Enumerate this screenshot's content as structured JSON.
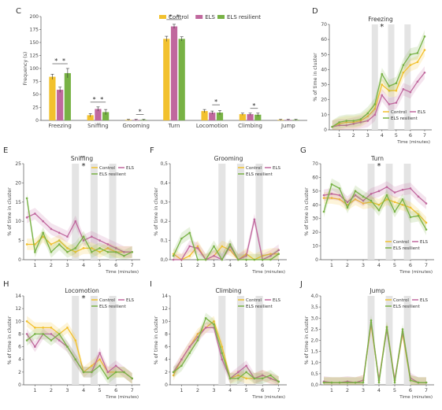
{
  "colors": {
    "control": "#f2c12e",
    "els": "#c0689e",
    "resilient": "#78b245",
    "shade": "#e4e4e4"
  },
  "legend_labels": [
    "Control",
    "ELS",
    "ELS resilient"
  ],
  "chart_data": [
    {
      "id": "C",
      "type": "bar",
      "panel_label": "C",
      "ylabel": "Frequency (s)",
      "ylim": [
        0,
        200
      ],
      "yticks": [
        "0",
        "25",
        "50",
        "75",
        "100",
        "125",
        "150",
        "175",
        "200"
      ],
      "categories": [
        "Freezing",
        "Sniffing",
        "Grooming",
        "Turn",
        "Locomotion",
        "Climbing",
        "Jump"
      ],
      "series": [
        {
          "name": "Control",
          "values": [
            84,
            10,
            1,
            157,
            18,
            12,
            1
          ],
          "errors": [
            5,
            3,
            1,
            5,
            3,
            2,
            1
          ]
        },
        {
          "name": "ELS",
          "values": [
            59,
            22,
            1,
            181,
            15,
            12,
            1
          ],
          "errors": [
            5,
            4,
            1,
            4,
            3,
            2,
            1
          ]
        },
        {
          "name": "ELS resilient",
          "values": [
            91,
            16,
            1,
            157,
            15,
            11,
            1
          ],
          "errors": [
            9,
            5,
            1,
            4,
            4,
            3,
            1
          ]
        }
      ],
      "significance": [
        "*",
        "*",
        "*",
        "*",
        "*",
        "*",
        "*",
        "*",
        "*"
      ]
    },
    {
      "id": "D",
      "type": "line",
      "panel_label": "D",
      "title": "Freezing",
      "star": "*",
      "ylabel": "% of time in cluster",
      "xlabel": "Time (minutes)",
      "ylim": [
        0,
        70
      ],
      "yticks": [
        "0",
        "10",
        "20",
        "30",
        "40",
        "50",
        "60",
        "70"
      ],
      "xticks": [
        "1",
        "2",
        "3",
        "4",
        "5",
        "6",
        "7"
      ],
      "legend": [
        "Control",
        "ELS",
        "ELS resilient"
      ],
      "x": [
        0.5,
        1,
        1.5,
        2,
        2.5,
        3,
        3.5,
        4,
        4.5,
        5,
        5.5,
        6,
        6.5,
        7
      ],
      "series": [
        {
          "name": "Control",
          "values": [
            2,
            4,
            5,
            5,
            6,
            9,
            14,
            30,
            26,
            26,
            38,
            43,
            45,
            53
          ]
        },
        {
          "name": "ELS",
          "values": [
            2,
            3,
            3,
            4,
            5,
            6,
            10,
            23,
            17,
            18,
            27,
            25,
            32,
            38
          ]
        },
        {
          "name": "ELS resilient",
          "values": [
            2,
            5,
            6,
            6,
            7,
            11,
            17,
            37,
            29,
            31,
            43,
            50,
            51,
            62
          ]
        }
      ]
    },
    {
      "id": "E",
      "type": "line",
      "panel_label": "E",
      "title": "Sniffing",
      "star": "*",
      "ylabel": "% of time in cluster",
      "xlabel": "Time (minutes)",
      "ylim": [
        0,
        25
      ],
      "yticks": [
        "0",
        "5",
        "10",
        "15",
        "20",
        "25"
      ],
      "xticks": [
        "1",
        "2",
        "3",
        "4",
        "5",
        "6",
        "7"
      ],
      "legend": [
        "Control",
        "ELS",
        "ELS resilient"
      ],
      "x": [
        0.5,
        1,
        1.5,
        2,
        2.5,
        3,
        3.5,
        4,
        4.5,
        5,
        5.5,
        6,
        6.5,
        7
      ],
      "series": [
        {
          "name": "Control",
          "values": [
            4,
            4,
            6,
            4,
            5,
            3,
            2,
            3,
            3,
            2,
            3,
            2,
            2,
            2
          ]
        },
        {
          "name": "ELS",
          "values": [
            11,
            12,
            10,
            8,
            7,
            6,
            10,
            5,
            6,
            5,
            4,
            3,
            2,
            2
          ]
        },
        {
          "name": "ELS resilient",
          "values": [
            16,
            2,
            7,
            2,
            4,
            2,
            3,
            6,
            2,
            3,
            2,
            2,
            1,
            2
          ]
        }
      ]
    },
    {
      "id": "F",
      "type": "line",
      "panel_label": "F",
      "title": "Grooming",
      "ylabel": "% of time in cluster",
      "xlabel": "Time (minutes)",
      "ylim": [
        0,
        0.5
      ],
      "yticks": [
        "0,0",
        "0,1",
        "0,2",
        "0,3",
        "0,4",
        "0,5"
      ],
      "xticks": [
        "1",
        "2",
        "3",
        "4",
        "5",
        "6",
        "7"
      ],
      "legend": [
        "Control",
        "ELS",
        "ELS resilient"
      ],
      "x": [
        0.5,
        1,
        1.5,
        2,
        2.5,
        3,
        3.5,
        4,
        4.5,
        5,
        5.5,
        6,
        6.5,
        7
      ],
      "series": [
        {
          "name": "Control",
          "values": [
            0.03,
            0.0,
            0.02,
            0.07,
            0.0,
            0.02,
            0.07,
            0.05,
            0.0,
            0.03,
            0.0,
            0.02,
            0.03,
            0.03
          ]
        },
        {
          "name": "ELS",
          "values": [
            0.0,
            0.0,
            0.07,
            0.06,
            0.0,
            0.02,
            0.0,
            0.07,
            0.0,
            0.02,
            0.21,
            0.0,
            0.02,
            0.05
          ]
        },
        {
          "name": "ELS resilient",
          "values": [
            0.02,
            0.11,
            0.14,
            0.0,
            0.0,
            0.07,
            0.0,
            0.08,
            0.0,
            0.0,
            0.0,
            0.0,
            0.0,
            0.03
          ]
        }
      ]
    },
    {
      "id": "G",
      "type": "line",
      "panel_label": "G",
      "title": "Turn",
      "star": "*",
      "ylabel": "% of time in cluster",
      "xlabel": "Time (minutes)",
      "ylim": [
        0,
        70
      ],
      "yticks": [
        "0",
        "10",
        "20",
        "30",
        "40",
        "50",
        "60",
        "70"
      ],
      "xticks": [
        "1",
        "2",
        "3",
        "4",
        "5",
        "6",
        "7"
      ],
      "legend": [
        "Control",
        "ELS",
        "ELS resilient"
      ],
      "x": [
        0.5,
        1,
        1.5,
        2,
        2.5,
        3,
        3.5,
        4,
        4.5,
        5,
        5.5,
        6,
        6.5,
        7
      ],
      "series": [
        {
          "name": "Control",
          "values": [
            45,
            45,
            44,
            40,
            44,
            41,
            42,
            40,
            44,
            42,
            40,
            38,
            33,
            27
          ]
        },
        {
          "name": "ELS",
          "values": [
            47,
            48,
            47,
            42,
            47,
            43,
            48,
            50,
            53,
            49,
            51,
            52,
            46,
            41
          ]
        },
        {
          "name": "ELS resilient",
          "values": [
            35,
            55,
            52,
            38,
            50,
            46,
            43,
            36,
            47,
            35,
            44,
            31,
            32,
            22
          ]
        }
      ]
    },
    {
      "id": "H",
      "type": "line",
      "panel_label": "H",
      "title": "Locomotion",
      "star": "*",
      "ylabel": "% of time in cluster",
      "xlabel": "Time (minutes)",
      "ylim": [
        0,
        14
      ],
      "yticks": [
        "0",
        "2",
        "4",
        "6",
        "8",
        "10",
        "12",
        "14"
      ],
      "xticks": [
        "1",
        "2",
        "3",
        "4",
        "5",
        "6",
        "7"
      ],
      "legend": [
        "Control",
        "ELS",
        "ELS resilient"
      ],
      "x": [
        0.5,
        1,
        1.5,
        2,
        2.5,
        3,
        3.5,
        4,
        4.5,
        5,
        5.5,
        6,
        6.5,
        7
      ],
      "series": [
        {
          "name": "Control",
          "values": [
            10,
            9,
            9,
            9,
            8,
            9,
            7,
            2,
            3,
            4,
            2,
            2,
            2,
            1
          ]
        },
        {
          "name": "ELS",
          "values": [
            8,
            6,
            8,
            8,
            7,
            6,
            4,
            2,
            2,
            5,
            2,
            3,
            2,
            1
          ]
        },
        {
          "name": "ELS resilient",
          "values": [
            7,
            8,
            8,
            7,
            8,
            6,
            4,
            2,
            2,
            3,
            1,
            2,
            2,
            1
          ]
        }
      ]
    },
    {
      "id": "I",
      "type": "line",
      "panel_label": "I",
      "title": "Climbing",
      "ylabel": "% of time in cluster",
      "xlabel": "Time (minutes)",
      "ylim": [
        0,
        14
      ],
      "yticks": [
        "0",
        "2",
        "4",
        "6",
        "8",
        "10",
        "12",
        "14"
      ],
      "xticks": [
        "1",
        "2",
        "3",
        "4",
        "5",
        "6",
        "7"
      ],
      "legend": [
        "Control",
        "ELS",
        "ELS resilient"
      ],
      "x": [
        0.5,
        1,
        1.5,
        2,
        2.5,
        3,
        3.5,
        4,
        4.5,
        5,
        5.5,
        6,
        6.5,
        7
      ],
      "series": [
        {
          "name": "Control",
          "values": [
            1.5,
            4,
            6,
            8,
            9,
            10,
            6,
            1,
            1.5,
            1,
            1,
            1.5,
            1,
            0.5
          ]
        },
        {
          "name": "ELS",
          "values": [
            2,
            4,
            6,
            7.5,
            9,
            9,
            4,
            1,
            2,
            3,
            1,
            1.5,
            1,
            0.5
          ]
        },
        {
          "name": "ELS resilient",
          "values": [
            2,
            3,
            5,
            7,
            10.5,
            9.5,
            5,
            1,
            1,
            2,
            1,
            1,
            1.5,
            0.5
          ]
        }
      ]
    },
    {
      "id": "J",
      "type": "line",
      "panel_label": "J",
      "title": "Jump",
      "ylabel": "% of time in cluster",
      "xlabel": "Time (minutes)",
      "ylim": [
        0,
        4
      ],
      "yticks": [
        "0,0",
        "0,5",
        "1,0",
        "1,5",
        "2,0",
        "2,5",
        "3,0",
        "3,5",
        "4,0"
      ],
      "xticks": [
        "1",
        "2",
        "3",
        "4",
        "5",
        "6",
        "7"
      ],
      "legend": [
        "Control",
        "ELS",
        "ELS resilient"
      ],
      "x": [
        0.5,
        1,
        1.5,
        2,
        2.5,
        3,
        3.5,
        4,
        4.5,
        5,
        5.5,
        6,
        6.5,
        7
      ],
      "series": [
        {
          "name": "Control",
          "values": [
            0.1,
            0.1,
            0.1,
            0.1,
            0.1,
            0.2,
            2.7,
            0.2,
            2.6,
            0.2,
            2.3,
            0.2,
            0.1,
            0.1
          ]
        },
        {
          "name": "ELS",
          "values": [
            0.15,
            0.1,
            0.1,
            0.15,
            0.1,
            0.2,
            2.8,
            0.2,
            2.5,
            0.2,
            2.4,
            0.3,
            0.1,
            0.1
          ]
        },
        {
          "name": "ELS resilient",
          "values": [
            0.1,
            0.1,
            0.1,
            0.1,
            0.1,
            0.1,
            2.9,
            0.1,
            2.6,
            0.1,
            2.5,
            0.2,
            0.1,
            0.1
          ]
        }
      ]
    }
  ]
}
